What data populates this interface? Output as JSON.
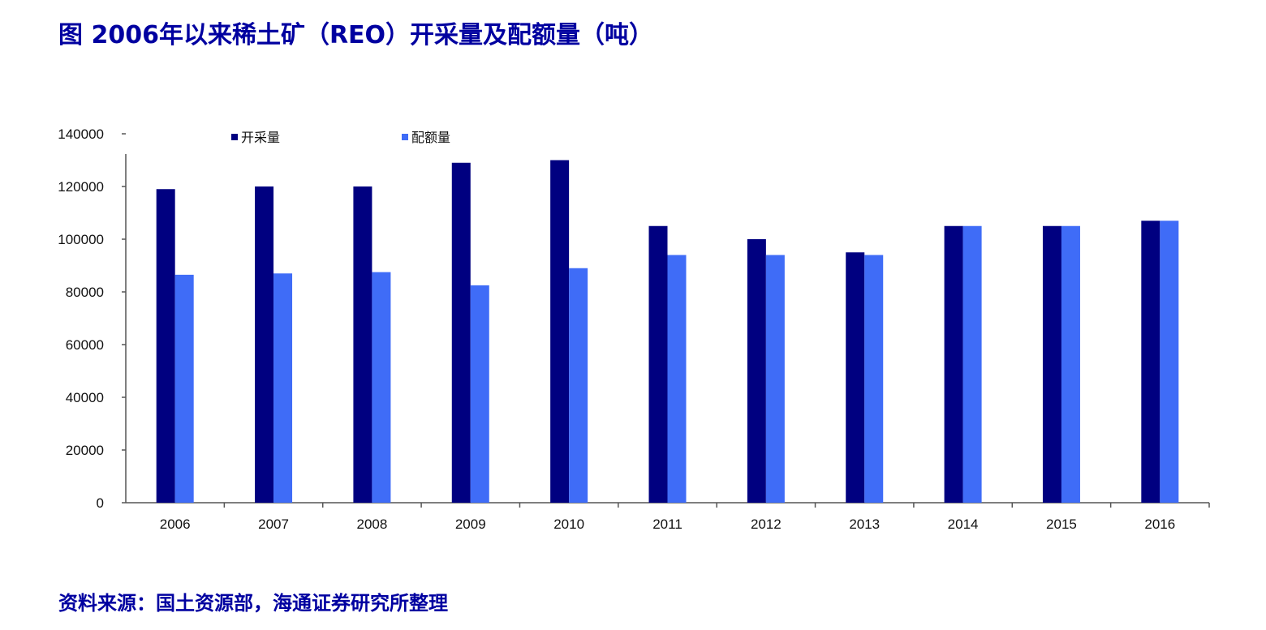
{
  "title": "图 2006年以来稀土矿（REO）开采量及配额量（吨）",
  "source": "资料来源：国土资源部，海通证券研究所整理",
  "colors": {
    "mining": "#000080",
    "quota": "#3f6cf7",
    "text_accent": "#0000a0"
  },
  "chart_data": {
    "type": "bar",
    "categories": [
      "2006",
      "2007",
      "2008",
      "2009",
      "2010",
      "2011",
      "2012",
      "2013",
      "2014",
      "2015",
      "2016"
    ],
    "series": [
      {
        "name": "开采量",
        "values": [
          119000,
          120000,
          120000,
          129000,
          130000,
          105000,
          100000,
          95000,
          105000,
          105000,
          107000
        ]
      },
      {
        "name": "配额量",
        "values": [
          86500,
          87000,
          87500,
          82500,
          89000,
          94000,
          94000,
          94000,
          105000,
          105000,
          107000
        ]
      }
    ],
    "y_ticks": [
      "0",
      "20000",
      "40000",
      "60000",
      "80000",
      "100000",
      "120000",
      "140000"
    ],
    "ylim": [
      0,
      140000
    ],
    "legend_position": "top",
    "grid": false
  }
}
